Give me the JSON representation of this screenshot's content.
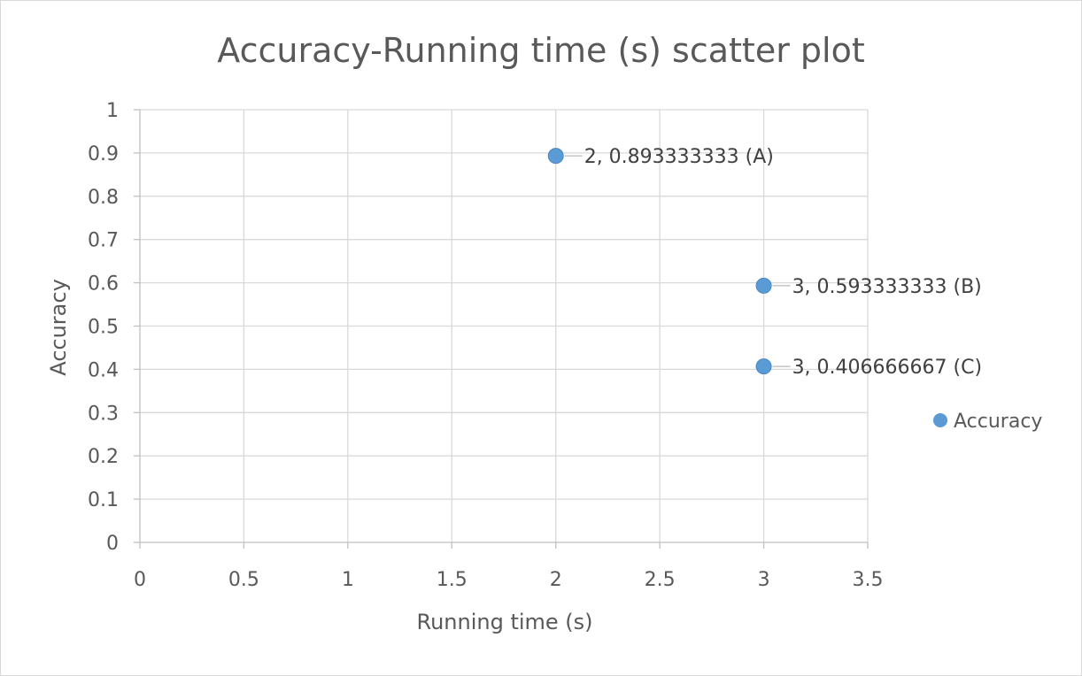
{
  "chart_data": {
    "type": "scatter",
    "title": "Accuracy-Running time (s) scatter plot",
    "xlabel": "Running time (s)",
    "ylabel": "Accuracy",
    "xlim": [
      0,
      3.5
    ],
    "ylim": [
      0,
      1
    ],
    "x_ticks": [
      "0",
      "0.5",
      "1",
      "1.5",
      "2",
      "2.5",
      "3",
      "3.5"
    ],
    "y_ticks": [
      "0",
      "0.1",
      "0.2",
      "0.3",
      "0.4",
      "0.5",
      "0.6",
      "0.7",
      "0.8",
      "0.9",
      "1"
    ],
    "grid": true,
    "legend": "right",
    "series": [
      {
        "name": "Accuracy",
        "color": "#5B9BD5",
        "points": [
          {
            "x": 2,
            "y": 0.893333333,
            "label": "2, 0.893333333 (A)"
          },
          {
            "x": 3,
            "y": 0.593333333,
            "label": "3, 0.593333333 (B)"
          },
          {
            "x": 3,
            "y": 0.406666667,
            "label": "3, 0.406666667 (C)"
          }
        ]
      }
    ]
  }
}
